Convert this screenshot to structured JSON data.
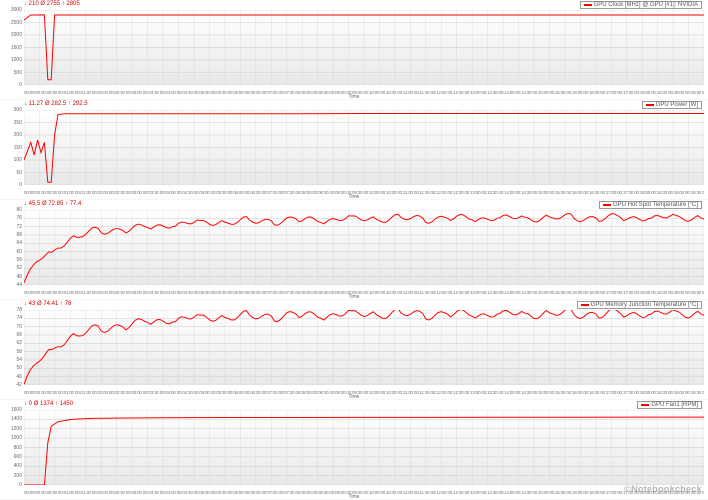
{
  "global": {
    "line_color": "#ff0000",
    "grid_color": "#cccccc",
    "shade_top": "#ffffff",
    "shade_bottom": "#e8e8e8",
    "label_color": "#666666",
    "stats_color": "#d00000",
    "xaxis_title": "Time",
    "watermark": "©Notebookcheck"
  },
  "x_ticks": [
    "00:00:00",
    "00:00:30",
    "00:01:00",
    "00:01:30",
    "00:02:00",
    "00:02:30",
    "00:03:00",
    "00:03:30",
    "00:04:00",
    "00:04:30",
    "00:05:00",
    "00:05:30",
    "00:06:00",
    "00:06:30",
    "00:07:00",
    "00:07:30",
    "00:08:00",
    "00:08:30",
    "00:09:00",
    "00:09:30",
    "00:10:00",
    "00:10:30",
    "00:11:00",
    "00:11:30",
    "00:12:00",
    "00:12:30",
    "00:13:00",
    "00:13:30",
    "00:14:00",
    "00:14:30",
    "00:15:00",
    "00:15:30",
    "00:16:00",
    "00:16:30",
    "00:17:00",
    "00:17:30",
    "00:18:00",
    "00:18:30",
    "00:19:00",
    "00:19:30",
    "00:20:00",
    "00:20:30",
    "00:21:00",
    "00:21:30",
    "00:22:00"
  ],
  "panels": [
    {
      "legend": "GPU Clock [MHz] @ GPU [#1]: NVIDIA",
      "stats": "↓ 210   Ø 2755   ↑ 2805",
      "ymin": 0,
      "ymax": 3000,
      "ytick_step": 500,
      "series": [
        [
          0,
          2600
        ],
        [
          0.01,
          2800
        ],
        [
          0.02,
          2800
        ],
        [
          0.03,
          2805
        ],
        [
          0.035,
          210
        ],
        [
          0.04,
          210
        ],
        [
          0.045,
          2800
        ],
        [
          0.05,
          2800
        ],
        [
          0.1,
          2800
        ],
        [
          0.2,
          2800
        ],
        [
          0.3,
          2800
        ],
        [
          0.4,
          2800
        ],
        [
          0.5,
          2800
        ],
        [
          0.6,
          2800
        ],
        [
          0.7,
          2800
        ],
        [
          0.8,
          2800
        ],
        [
          0.9,
          2800
        ],
        [
          1.0,
          2800
        ]
      ]
    },
    {
      "legend": "GPU Power [W]",
      "stats": "↓ 11.27   Ø 282.5   ↑ 292.5",
      "ymin": 0,
      "ymax": 300,
      "ytick_step": 50,
      "series": [
        [
          0,
          100
        ],
        [
          0.01,
          170
        ],
        [
          0.015,
          120
        ],
        [
          0.02,
          180
        ],
        [
          0.025,
          130
        ],
        [
          0.03,
          170
        ],
        [
          0.035,
          11
        ],
        [
          0.04,
          11
        ],
        [
          0.045,
          200
        ],
        [
          0.05,
          282
        ],
        [
          0.06,
          285
        ],
        [
          0.1,
          285
        ],
        [
          0.2,
          285
        ],
        [
          0.3,
          285
        ],
        [
          0.4,
          285
        ],
        [
          0.5,
          286
        ],
        [
          0.6,
          286
        ],
        [
          0.7,
          286
        ],
        [
          0.8,
          286
        ],
        [
          0.9,
          286
        ],
        [
          1.0,
          286
        ]
      ]
    },
    {
      "legend": "GPU Hot Spot Temperature [°C]",
      "stats": "↓ 45.5   Ø 72.85   ↑ 77.4",
      "ymin": 44,
      "ymax": 78,
      "ytick_step": 4,
      "noise": 1.1,
      "series": [
        [
          0,
          45.5
        ],
        [
          0.02,
          55
        ],
        [
          0.04,
          58
        ],
        [
          0.05,
          62
        ],
        [
          0.08,
          66
        ],
        [
          0.1,
          68
        ],
        [
          0.13,
          69
        ],
        [
          0.18,
          70
        ],
        [
          0.22,
          71.5
        ],
        [
          0.28,
          72.5
        ],
        [
          0.35,
          73
        ],
        [
          0.4,
          73.5
        ],
        [
          0.5,
          74
        ],
        [
          0.6,
          74.2
        ],
        [
          0.7,
          74.3
        ],
        [
          0.8,
          74.5
        ],
        [
          0.9,
          74.5
        ],
        [
          1.0,
          74.5
        ]
      ]
    },
    {
      "legend": "GPU Memory Junction Temperature [°C]",
      "stats": "↓ 43   Ø 74.41   ↑ 78",
      "ymin": 42,
      "ymax": 78,
      "ytick_step": 4,
      "noise": 1.4,
      "series": [
        [
          0,
          43
        ],
        [
          0.02,
          53
        ],
        [
          0.04,
          58
        ],
        [
          0.05,
          62
        ],
        [
          0.08,
          66
        ],
        [
          0.1,
          68
        ],
        [
          0.13,
          70
        ],
        [
          0.18,
          72
        ],
        [
          0.22,
          73.5
        ],
        [
          0.28,
          74.5
        ],
        [
          0.35,
          75
        ],
        [
          0.4,
          75.5
        ],
        [
          0.5,
          76
        ],
        [
          0.6,
          76
        ],
        [
          0.7,
          76
        ],
        [
          0.8,
          76.2
        ],
        [
          0.9,
          76.2
        ],
        [
          1.0,
          76.2
        ]
      ]
    },
    {
      "legend": "GPU Fan1 [RPM]",
      "stats": "↓ 0   Ø 1374   ↑ 1450",
      "ymin": 0,
      "ymax": 1600,
      "ytick_step": 200,
      "series": [
        [
          0,
          0
        ],
        [
          0.03,
          0
        ],
        [
          0.035,
          900
        ],
        [
          0.04,
          1250
        ],
        [
          0.05,
          1350
        ],
        [
          0.07,
          1400
        ],
        [
          0.1,
          1420
        ],
        [
          0.15,
          1430
        ],
        [
          0.2,
          1435
        ],
        [
          0.3,
          1440
        ],
        [
          0.4,
          1440
        ],
        [
          0.5,
          1442
        ],
        [
          0.6,
          1442
        ],
        [
          0.7,
          1445
        ],
        [
          0.8,
          1445
        ],
        [
          0.9,
          1448
        ],
        [
          1.0,
          1448
        ]
      ]
    }
  ]
}
